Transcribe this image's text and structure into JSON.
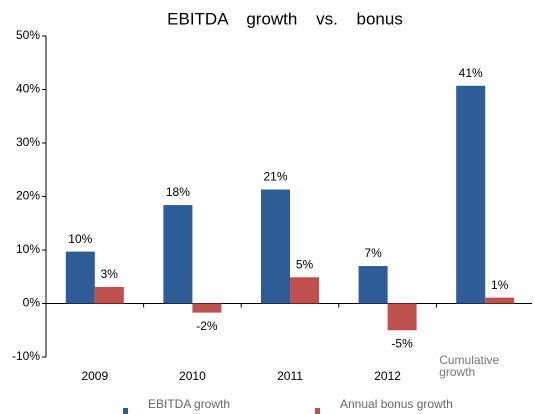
{
  "chart_data": {
    "type": "bar",
    "title": "EBITDA growth vs. bonus",
    "categories": [
      "2009",
      "2010",
      "2011",
      "2012",
      "Cumulative growth"
    ],
    "series": [
      {
        "name": "EBITDA growth",
        "color": "#2e5c96",
        "values": [
          9.7,
          18.4,
          21.3,
          7.0,
          40.7
        ],
        "value_labels": [
          "10%",
          "18%",
          "21%",
          "7%",
          "41%"
        ]
      },
      {
        "name": "Annual bonus growth",
        "color": "#c0504d",
        "values": [
          3.1,
          -1.7,
          4.9,
          -5.0,
          1.1
        ],
        "value_labels": [
          "3%",
          "-2%",
          "5%",
          "-5%",
          "1%"
        ]
      }
    ],
    "ylim": [
      -10,
      50
    ],
    "yticks": [
      {
        "value": -10,
        "label": "-10%"
      },
      {
        "value": 0,
        "label": "0%"
      },
      {
        "value": 10,
        "label": "10%"
      },
      {
        "value": 20,
        "label": "20%"
      },
      {
        "value": 30,
        "label": "30%"
      },
      {
        "value": 40,
        "label": "40%"
      },
      {
        "value": 50,
        "label": "50%"
      }
    ]
  }
}
